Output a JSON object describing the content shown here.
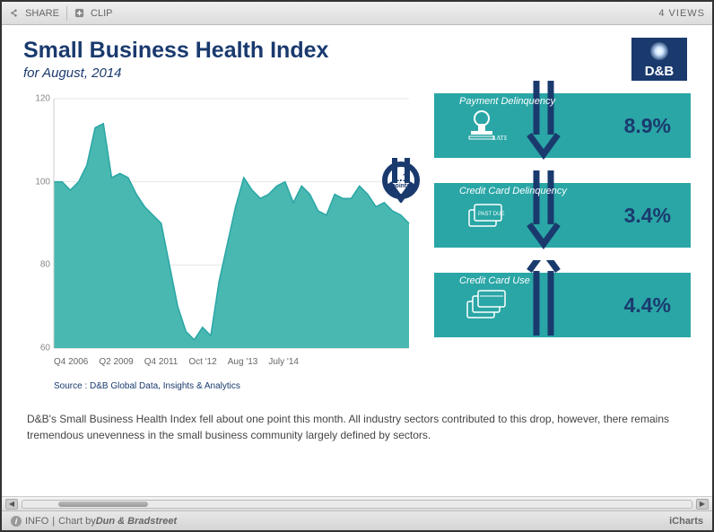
{
  "topbar": {
    "share": "SHARE",
    "clip": "CLIP",
    "views": "4 VIEWS"
  },
  "header": {
    "title": "Small Business Health Index",
    "subtitle": "for August, 2014",
    "logo_text": "D&B",
    "title_color": "#1a3a6e"
  },
  "chart": {
    "type": "area",
    "ylim": [
      60,
      120
    ],
    "yticks": [
      60,
      80,
      100,
      120
    ],
    "xlabels": [
      "Q4 2006",
      "Q2 2009",
      "Q4 2011",
      "Oct '12",
      "Aug '13",
      "July '14"
    ],
    "fill_color": "#49b8b0",
    "stroke_color": "#2aa6a6",
    "grid_color": "#e6e6e6",
    "axis_color": "#cccccc",
    "background_color": "#ffffff",
    "tick_font_size": 10,
    "values": [
      100,
      100,
      98,
      100,
      104,
      113,
      114,
      101,
      102,
      101,
      97,
      94,
      92,
      90,
      80,
      70,
      64,
      62,
      65,
      63,
      76,
      85,
      94,
      101,
      98,
      96,
      97,
      99,
      100,
      95,
      99,
      97,
      93,
      92,
      97,
      96,
      96,
      99,
      97,
      94,
      95,
      93,
      92,
      90
    ],
    "callout": {
      "value": "1.1",
      "unit": "points",
      "direction": "down",
      "x_index": 42,
      "ring_color": "#1a3a6e"
    }
  },
  "source": "Source : D&B Global Data, Insights & Analytics",
  "cards_bg": "#2aa6a6",
  "cards_value_color": "#1a3a6e",
  "arrow_color": "#1a3a6e",
  "cards": [
    {
      "label": "Payment Delinquency",
      "direction": "down",
      "value": "8.9%",
      "icon": "stamp"
    },
    {
      "label": "Credit Card Delinquency",
      "direction": "down",
      "value": "3.4%",
      "icon": "cards-pastdue"
    },
    {
      "label": "Credit Card Use",
      "direction": "up",
      "value": "4.4%",
      "icon": "cards"
    }
  ],
  "body_text": "D&B's Small Business Health Index fell about one point this month. All industry sectors contributed to this drop, however, there remains tremendous unevenness in the small business community largely defined by sectors.",
  "footer": {
    "info": "INFO",
    "chart_by_prefix": "Chart by ",
    "chart_by": "Dun & Bradstreet",
    "right": "iCharts"
  }
}
